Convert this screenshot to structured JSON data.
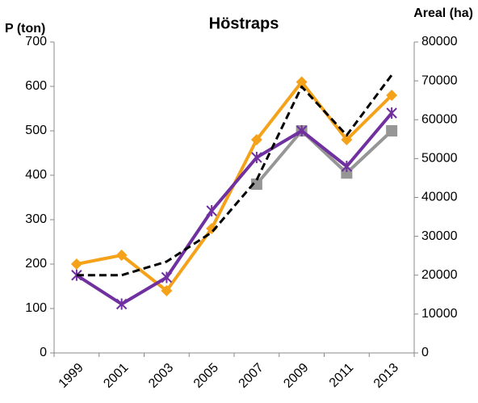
{
  "chart_data": {
    "type": "line",
    "title": "Höstraps",
    "y_label": "P (ton)",
    "y2_label": "Areal (ha)",
    "categories": [
      "1999",
      "2001",
      "2003",
      "2005",
      "2007",
      "2009",
      "2011",
      "2013"
    ],
    "ylim": [
      0,
      700
    ],
    "yticks": [
      0,
      100,
      200,
      300,
      400,
      500,
      600,
      700
    ],
    "y2lim": [
      0,
      80000
    ],
    "y2ticks": [
      0,
      10000,
      20000,
      30000,
      40000,
      50000,
      60000,
      70000,
      80000
    ],
    "grid": false,
    "series": [
      {
        "color": "#f5a21b",
        "marker": "diamond",
        "values": [
          200,
          220,
          140,
          280,
          480,
          610,
          480,
          580
        ]
      },
      {
        "color": "#969696",
        "marker": "square",
        "values": [
          null,
          null,
          null,
          null,
          380,
          500,
          405,
          500
        ]
      },
      {
        "color": "#7030a0",
        "marker": "star",
        "values": [
          175,
          110,
          170,
          320,
          440,
          500,
          420,
          540
        ]
      },
      {
        "color": "#000000",
        "dashed": true,
        "axis": "y2",
        "values": [
          20000,
          20000,
          23500,
          31000,
          44500,
          68500,
          56000,
          71500
        ]
      }
    ]
  }
}
